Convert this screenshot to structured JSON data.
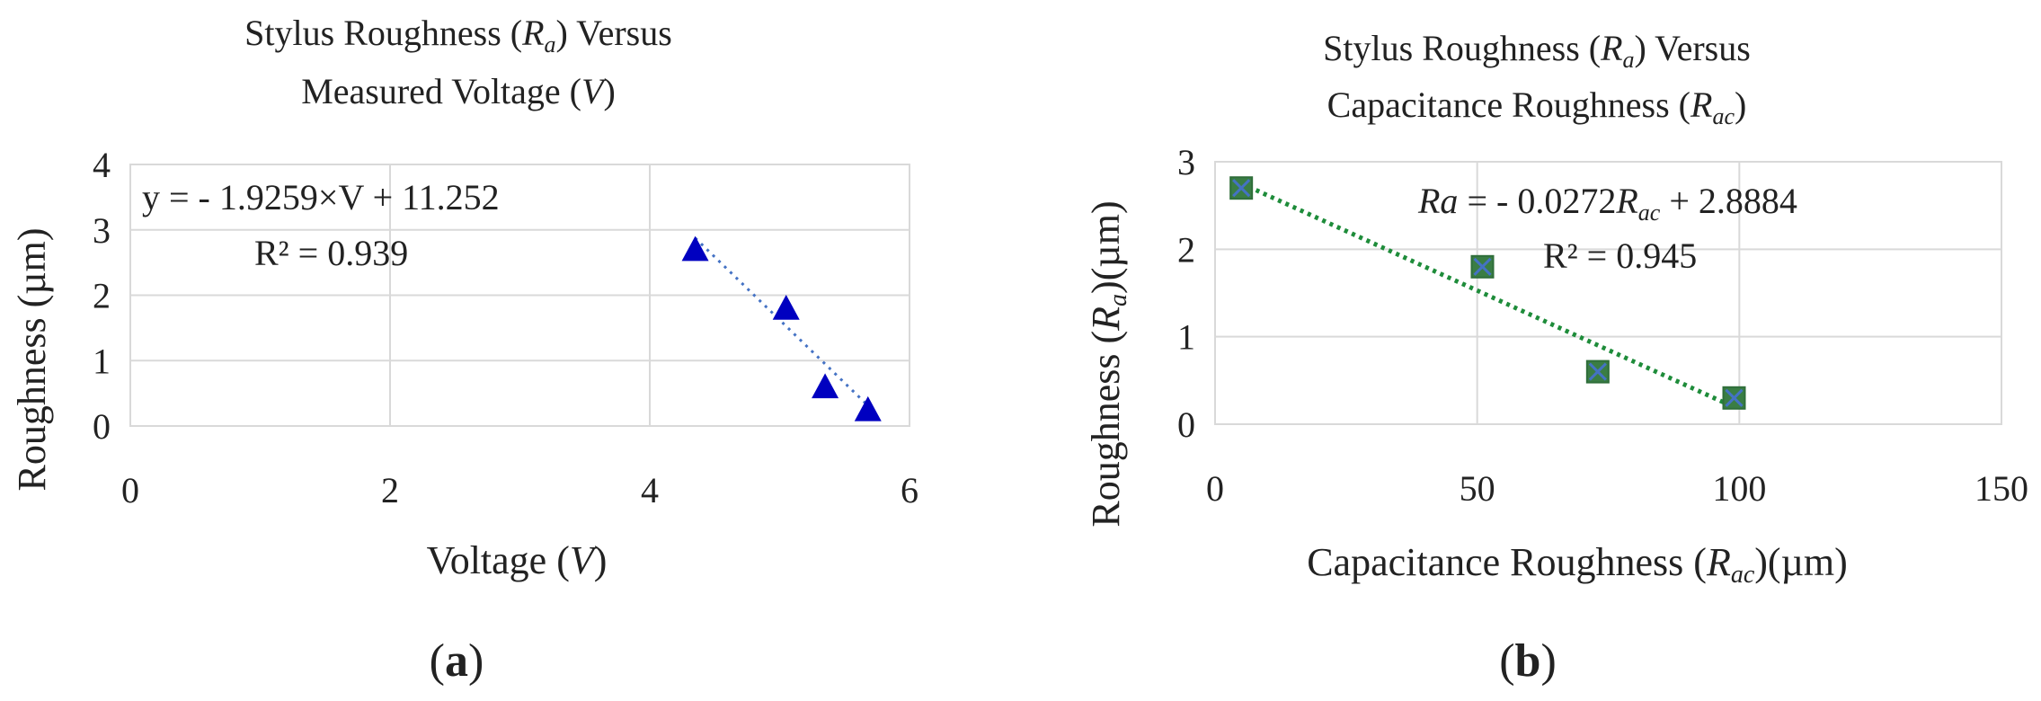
{
  "chart_data": [
    {
      "type": "scatter",
      "title_line1": {
        "pre": "Stylus Roughness (",
        "var": "R",
        "sub": "a",
        "post": ") Versus"
      },
      "title_line2": {
        "pre": "Measured Voltage (",
        "var": "V",
        "post": ")"
      },
      "xlabel": {
        "pre": "Voltage (",
        "var": "V",
        "post": ")"
      },
      "ylabel": "Roughness (µm)",
      "xlim": [
        0,
        6
      ],
      "ylim": [
        0,
        4
      ],
      "xticks": [
        "0",
        "2",
        "4",
        "6"
      ],
      "yticks": [
        "0",
        "1",
        "2",
        "3",
        "4"
      ],
      "grid": true,
      "marker": "triangle",
      "color": "#0000c0",
      "trendline_color": "#4472c4",
      "points": [
        {
          "x": 4.35,
          "y": 2.7
        },
        {
          "x": 5.05,
          "y": 1.8
        },
        {
          "x": 5.35,
          "y": 0.6
        },
        {
          "x": 5.68,
          "y": 0.25
        }
      ],
      "trendline": {
        "slope": -1.9259,
        "intercept": 11.252,
        "x_range": [
          4.35,
          5.68
        ]
      },
      "equation": "y = - 1.9259×V + 11.252",
      "r2": "R²  =  0.939",
      "panel_label": "a"
    },
    {
      "type": "scatter",
      "title_line1": {
        "pre": "Stylus Roughness (",
        "var": "R",
        "sub": "a",
        "post": ") Versus"
      },
      "title_line2": {
        "pre": "Capacitance Roughness (",
        "var": "R",
        "sub": "ac",
        "post": ")"
      },
      "xlabel": {
        "pre": "Capacitance Roughness (",
        "var": "R",
        "sub": "ac",
        "post": ")(µm)"
      },
      "ylabel": {
        "pre": "Roughness (",
        "var": "R",
        "sub": "a",
        "post": ")(µm)"
      },
      "xlim": [
        0,
        150
      ],
      "ylim": [
        0,
        3
      ],
      "xticks": [
        "0",
        "50",
        "100",
        "150"
      ],
      "yticks": [
        "0",
        "1",
        "2",
        "3"
      ],
      "grid": true,
      "marker": "square-x",
      "color": "#3a7d44",
      "marker_x_color": "#4472c4",
      "trendline_color": "#1e8c3a",
      "points": [
        {
          "x": 5,
          "y": 2.7
        },
        {
          "x": 51,
          "y": 1.8
        },
        {
          "x": 73,
          "y": 0.6
        },
        {
          "x": 99,
          "y": 0.3
        }
      ],
      "trendline": {
        "slope": -0.0272,
        "intercept": 2.8884,
        "x_range": [
          5,
          99
        ]
      },
      "equation": {
        "pre": "Ra",
        "mid": " = - 0.0272",
        "var": "R",
        "sub": "ac",
        "post": " + 2.8884"
      },
      "r2": "R²  =  0.945",
      "panel_label": "b"
    }
  ]
}
